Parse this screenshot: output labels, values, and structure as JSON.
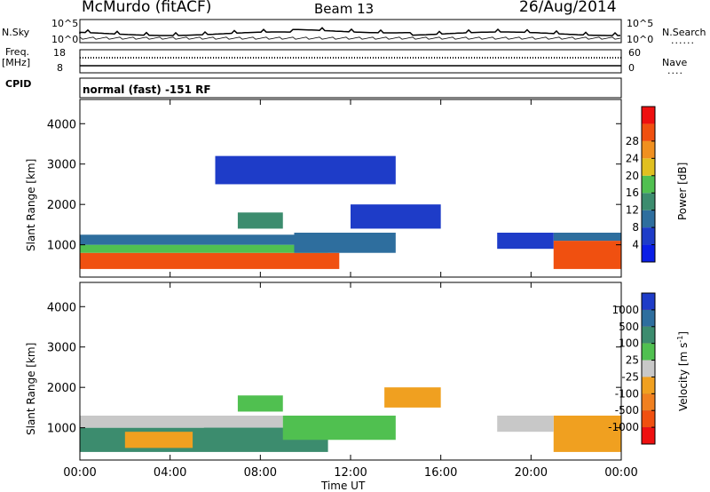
{
  "header": {
    "station": "McMurdo (fitACF)",
    "beam": "Beam 13",
    "date": "26/Aug/2014"
  },
  "top_panels": {
    "nsky_label": "N.Sky",
    "nsky_ticks": [
      "10^5",
      "10^0"
    ],
    "nsearch_label": "N.Search",
    "nsearch_ticks": [
      "10^5",
      "10^0"
    ],
    "freq_label": "Freq.",
    "freq_unit": "[MHz]",
    "freq_ticks": [
      "18",
      "8"
    ],
    "nave_label": "Nave",
    "nave_ticks": [
      "60",
      "0"
    ],
    "cpid_label": "CPID",
    "cpid_text": "normal (fast) -151 RF"
  },
  "chart_data": [
    {
      "type": "heatmap",
      "name": "power",
      "ylabel": "Slant Range [km]",
      "xlabel": "",
      "yticks": [
        "1000",
        "2000",
        "3000",
        "4000"
      ],
      "ylim": [
        200,
        4600
      ],
      "xlim": [
        0,
        24
      ],
      "xticks": [
        "00:00",
        "04:00",
        "08:00",
        "12:00",
        "16:00",
        "20:00",
        "00:00"
      ],
      "colorbar": {
        "label": "Power [dB]",
        "ticks": [
          "4",
          "8",
          "12",
          "16",
          "20",
          "24",
          "28"
        ],
        "colors": [
          "#0a1ee6",
          "#1e3cc8",
          "#2e6e9e",
          "#3c8c6e",
          "#50c050",
          "#e0c020",
          "#f09020",
          "#f05010",
          "#ee1010"
        ]
      },
      "regions": [
        {
          "t0": 0.0,
          "t1": 11.5,
          "r0": 400,
          "r1": 800,
          "value": 28
        },
        {
          "t0": 0.0,
          "t1": 11.0,
          "r0": 800,
          "r1": 1000,
          "value": 18
        },
        {
          "t0": 0.0,
          "t1": 11.0,
          "r0": 1000,
          "r1": 1250,
          "value": 8
        },
        {
          "t0": 9.5,
          "t1": 14.0,
          "r0": 800,
          "r1": 1300,
          "value": 10
        },
        {
          "t0": 12.0,
          "t1": 16.0,
          "r0": 1400,
          "r1": 2000,
          "value": 6
        },
        {
          "t0": 21.0,
          "t1": 24.0,
          "r0": 400,
          "r1": 1100,
          "value": 28
        },
        {
          "t0": 21.0,
          "t1": 24.0,
          "r0": 1100,
          "r1": 1300,
          "value": 8
        },
        {
          "t0": 18.5,
          "t1": 21.0,
          "r0": 900,
          "r1": 1300,
          "value": 6
        },
        {
          "t0": 7.0,
          "t1": 9.0,
          "r0": 1400,
          "r1": 1800,
          "value": 12
        },
        {
          "t0": 6.0,
          "t1": 14.0,
          "r0": 2500,
          "r1": 3200,
          "value": 6
        }
      ]
    },
    {
      "type": "heatmap",
      "name": "velocity",
      "ylabel": "Slant Range [km]",
      "xlabel": "Time UT",
      "yticks": [
        "1000",
        "2000",
        "3000",
        "4000"
      ],
      "ylim": [
        200,
        4600
      ],
      "xlim": [
        0,
        24
      ],
      "xticks": [
        "00:00",
        "04:00",
        "08:00",
        "12:00",
        "16:00",
        "20:00",
        "00:00"
      ],
      "colorbar": {
        "label": "Velocity [m s",
        "label_sup": "-1",
        "label_end": "]",
        "ticks": [
          "1000",
          "500",
          "100",
          "25",
          "-25",
          "-100",
          "-500",
          "-1000"
        ],
        "colors": [
          "#1e3cc8",
          "#2e6e9e",
          "#3c8c6e",
          "#50c050",
          "#c8c8c8",
          "#f0a020",
          "#f08020",
          "#f05010",
          "#ee1010"
        ]
      },
      "regions": [
        {
          "t0": 0.0,
          "t1": 11.0,
          "r0": 400,
          "r1": 1000,
          "value": 100
        },
        {
          "t0": 0.0,
          "t1": 9.0,
          "r0": 1000,
          "r1": 1300,
          "value": 0
        },
        {
          "t0": 2.0,
          "t1": 5.0,
          "r0": 500,
          "r1": 900,
          "value": -100
        },
        {
          "t0": 5.5,
          "t1": 9.0,
          "r0": 500,
          "r1": 1000,
          "value": 200
        },
        {
          "t0": 9.0,
          "t1": 14.0,
          "r0": 700,
          "r1": 1300,
          "value": 80
        },
        {
          "t0": 21.0,
          "t1": 24.0,
          "r0": 400,
          "r1": 1300,
          "value": -100
        },
        {
          "t0": 18.5,
          "t1": 21.0,
          "r0": 900,
          "r1": 1300,
          "value": 0
        },
        {
          "t0": 13.5,
          "t1": 16.0,
          "r0": 1500,
          "r1": 2000,
          "value": -100
        },
        {
          "t0": 7.0,
          "t1": 9.0,
          "r0": 1400,
          "r1": 1800,
          "value": 80
        }
      ]
    }
  ]
}
